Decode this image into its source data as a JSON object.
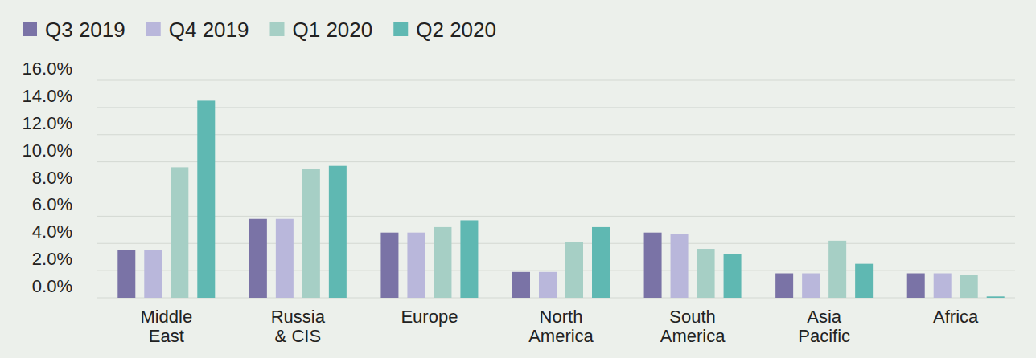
{
  "chart_data": {
    "type": "bar",
    "categories": [
      "Middle East",
      "Russia & CIS",
      "Europe",
      "North America",
      "South America",
      "Asia Pacific",
      "Africa"
    ],
    "series": [
      {
        "name": "Q3 2019",
        "color": "#7a73a6",
        "values": [
          3.5,
          5.8,
          4.8,
          1.9,
          4.8,
          1.8,
          1.8
        ]
      },
      {
        "name": "Q4 2019",
        "color": "#b9b7db",
        "values": [
          3.5,
          5.8,
          4.8,
          1.9,
          4.7,
          1.8,
          1.8
        ]
      },
      {
        "name": "Q1 2020",
        "color": "#a6cfc5",
        "values": [
          9.6,
          9.5,
          5.2,
          4.1,
          3.6,
          4.2,
          1.7
        ]
      },
      {
        "name": "Q2 2020",
        "color": "#5fb8b2",
        "values": [
          14.5,
          9.7,
          5.7,
          5.2,
          3.2,
          2.5,
          0.1
        ]
      }
    ],
    "ylim": [
      0,
      16
    ],
    "yticks": [
      {
        "value": 0,
        "label": "0.0%"
      },
      {
        "value": 2,
        "label": "2.0%"
      },
      {
        "value": 4,
        "label": "4.0%"
      },
      {
        "value": 6,
        "label": "6.0%"
      },
      {
        "value": 8,
        "label": "8.0%"
      },
      {
        "value": 10,
        "label": "10.0%"
      },
      {
        "value": 12,
        "label": "12.0%"
      },
      {
        "value": 14,
        "label": "14.0%"
      },
      {
        "value": 16,
        "label": "16.0%"
      }
    ],
    "grid": true,
    "legend": "top-left"
  }
}
